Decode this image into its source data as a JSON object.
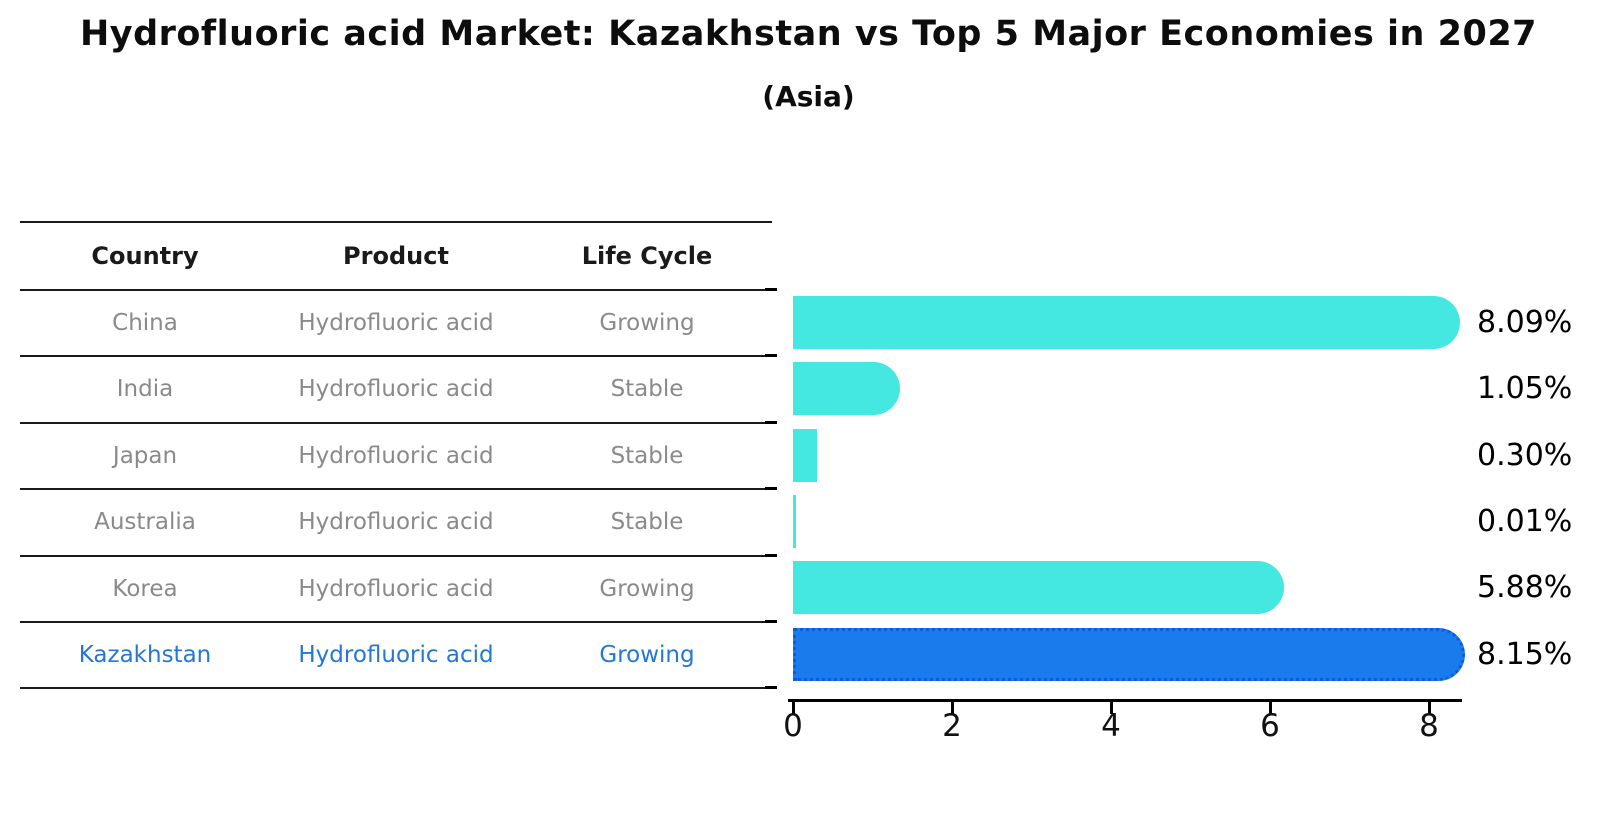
{
  "title": "Hydrofluoric acid Market: Kazakhstan vs Top 5 Major Economies in 2027",
  "subtitle": "(Asia)",
  "table": {
    "headers": [
      "Country",
      "Product",
      "Life Cycle"
    ],
    "rows": [
      {
        "country": "China",
        "product": "Hydrofluoric acid",
        "life_cycle": "Growing",
        "highlight": false
      },
      {
        "country": "India",
        "product": "Hydrofluoric acid",
        "life_cycle": "Stable",
        "highlight": false
      },
      {
        "country": "Japan",
        "product": "Hydrofluoric acid",
        "life_cycle": "Stable",
        "highlight": false
      },
      {
        "country": "Australia",
        "product": "Hydrofluoric acid",
        "life_cycle": "Stable",
        "highlight": false
      },
      {
        "country": "Korea",
        "product": "Hydrofluoric acid",
        "life_cycle": "Growing",
        "highlight": false
      },
      {
        "country": "Kazakhstan",
        "product": "Hydrofluoric acid",
        "life_cycle": "Growing",
        "highlight": true
      }
    ]
  },
  "chart_data": {
    "type": "bar",
    "orientation": "horizontal",
    "categories": [
      "China",
      "India",
      "Japan",
      "Australia",
      "Korea",
      "Kazakhstan"
    ],
    "values": [
      8.09,
      1.05,
      0.3,
      0.01,
      5.88,
      8.15
    ],
    "value_labels": [
      "8.09%",
      "1.05%",
      "0.30%",
      "0.01%",
      "5.88%",
      "8.15%"
    ],
    "highlight_index": 5,
    "x_ticks": [
      "0",
      "2",
      "4",
      "6",
      "8"
    ],
    "x_tick_values": [
      0,
      2,
      4,
      6,
      8
    ],
    "xlim": [
      0,
      8.5
    ],
    "grid": false,
    "legend": "none",
    "xlabel": "",
    "ylabel": ""
  },
  "colors": {
    "bar": "#45e8e0",
    "highlight_bar": "#1a7cec",
    "highlight_bar_border": "#0d5cd8",
    "muted_text": "#8a8a8a",
    "highlight_text": "#2478d4"
  }
}
